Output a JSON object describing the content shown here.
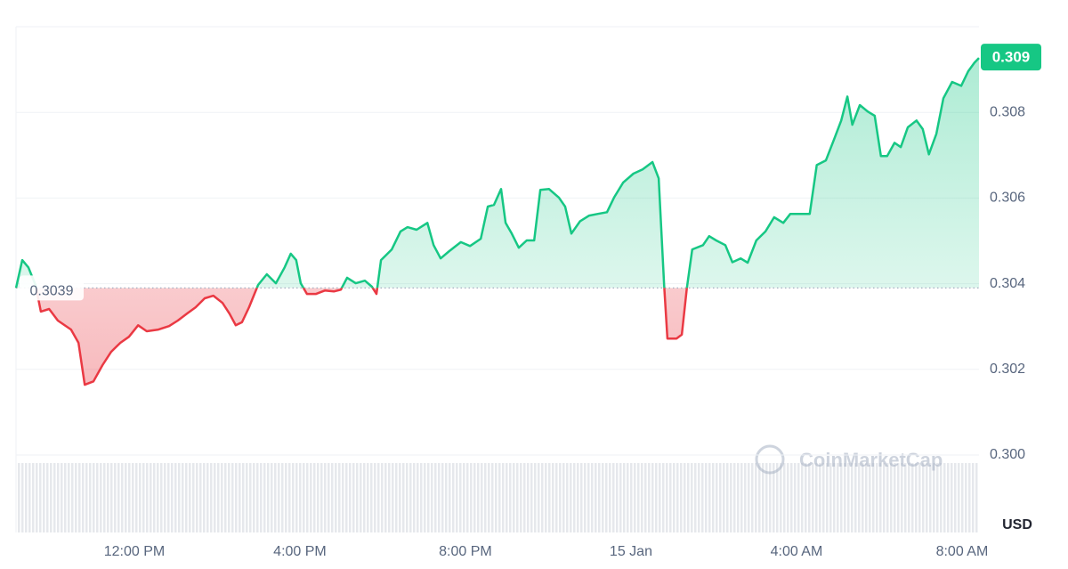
{
  "chart_data": {
    "type": "line",
    "x": [
      9.14,
      9.29,
      9.44,
      9.61,
      9.74,
      9.94,
      10.15,
      10.47,
      10.65,
      10.8,
      11.01,
      11.23,
      11.44,
      11.66,
      11.87,
      12.09,
      12.3,
      12.58,
      12.84,
      13.05,
      13.27,
      13.48,
      13.7,
      13.91,
      14.13,
      14.3,
      14.45,
      14.6,
      14.77,
      14.99,
      15.2,
      15.42,
      15.63,
      15.78,
      15.91,
      16.02,
      16.17,
      16.39,
      16.6,
      16.82,
      16.99,
      17.14,
      17.35,
      17.57,
      17.74,
      17.85,
      17.96,
      18.22,
      18.43,
      18.6,
      18.82,
      19.08,
      19.23,
      19.4,
      19.61,
      19.89,
      20.11,
      20.37,
      20.54,
      20.69,
      20.86,
      20.97,
      21.12,
      21.29,
      21.48,
      21.66,
      21.81,
      22.02,
      22.26,
      22.41,
      22.56,
      22.77,
      22.99,
      23.2,
      23.42,
      23.59,
      23.81,
      24.06,
      24.28,
      24.52,
      24.67,
      24.8,
      24.88,
      25.1,
      25.23,
      25.35,
      25.48,
      25.74,
      25.89,
      26.06,
      26.28,
      26.45,
      26.65,
      26.82,
      27.03,
      27.25,
      27.46,
      27.68,
      27.85,
      28.06,
      28.32,
      28.49,
      28.71,
      28.92,
      29.08,
      29.23,
      29.35,
      29.53,
      29.72,
      29.89,
      30.04,
      30.19,
      30.37,
      30.52,
      30.69,
      30.9,
      31.05,
      31.2,
      31.38,
      31.55,
      31.76,
      31.98,
      32.15,
      32.3,
      32.41
    ],
    "values": [
      0.3039,
      0.30455,
      0.30438,
      0.30397,
      0.30335,
      0.30341,
      0.30314,
      0.30293,
      0.30262,
      0.30164,
      0.30172,
      0.3021,
      0.30241,
      0.30262,
      0.30276,
      0.30303,
      0.30289,
      0.30293,
      0.30301,
      0.30314,
      0.3033,
      0.30345,
      0.30366,
      0.30372,
      0.30355,
      0.3033,
      0.30303,
      0.3031,
      0.30345,
      0.30397,
      0.30422,
      0.30401,
      0.30438,
      0.3047,
      0.30455,
      0.30401,
      0.30376,
      0.30376,
      0.30384,
      0.30382,
      0.30386,
      0.30414,
      0.30401,
      0.30407,
      0.30393,
      0.30376,
      0.30455,
      0.3048,
      0.30522,
      0.30532,
      0.30526,
      0.30542,
      0.3049,
      0.30459,
      0.30476,
      0.30497,
      0.30488,
      0.30505,
      0.3058,
      0.30584,
      0.30621,
      0.30542,
      0.30517,
      0.30484,
      0.30501,
      0.30501,
      0.30619,
      0.30621,
      0.30601,
      0.3058,
      0.30517,
      0.30546,
      0.30559,
      0.30563,
      0.30567,
      0.30601,
      0.30636,
      0.30657,
      0.30667,
      0.30684,
      0.30646,
      0.30397,
      0.30272,
      0.30272,
      0.30281,
      0.30389,
      0.3048,
      0.3049,
      0.30511,
      0.30501,
      0.3049,
      0.3045,
      0.30459,
      0.30449,
      0.30501,
      0.30522,
      0.30555,
      0.30542,
      0.30563,
      0.30563,
      0.30563,
      0.30677,
      0.30688,
      0.3074,
      0.30781,
      0.30837,
      0.30771,
      0.30817,
      0.30802,
      0.30792,
      0.30698,
      0.30698,
      0.30729,
      0.30719,
      0.30765,
      0.30781,
      0.30761,
      0.30702,
      0.3075,
      0.30833,
      0.30871,
      0.30862,
      0.30896,
      0.30916,
      0.30927
    ],
    "baseline": 0.3039,
    "last_value_label": "0.309",
    "color_up": "#16c784",
    "color_down": "#ea3943",
    "xlim": [
      9.14,
      32.41
    ],
    "xticks": [
      {
        "value": 12,
        "label": "12:00 PM"
      },
      {
        "value": 16,
        "label": "4:00 PM"
      },
      {
        "value": 20,
        "label": "8:00 PM"
      },
      {
        "value": 24,
        "label": "15 Jan"
      },
      {
        "value": 28,
        "label": "4:00 AM"
      },
      {
        "value": 32,
        "label": "8:00 AM"
      }
    ],
    "ylim": [
      0.3,
      0.31
    ],
    "yticks": [
      {
        "value": 0.3,
        "label": "0.300"
      },
      0.302,
      0.304,
      0.306,
      0.308
    ],
    "y_axis_label": "USD",
    "watermark": "CoinMarketCap",
    "grid": true
  }
}
